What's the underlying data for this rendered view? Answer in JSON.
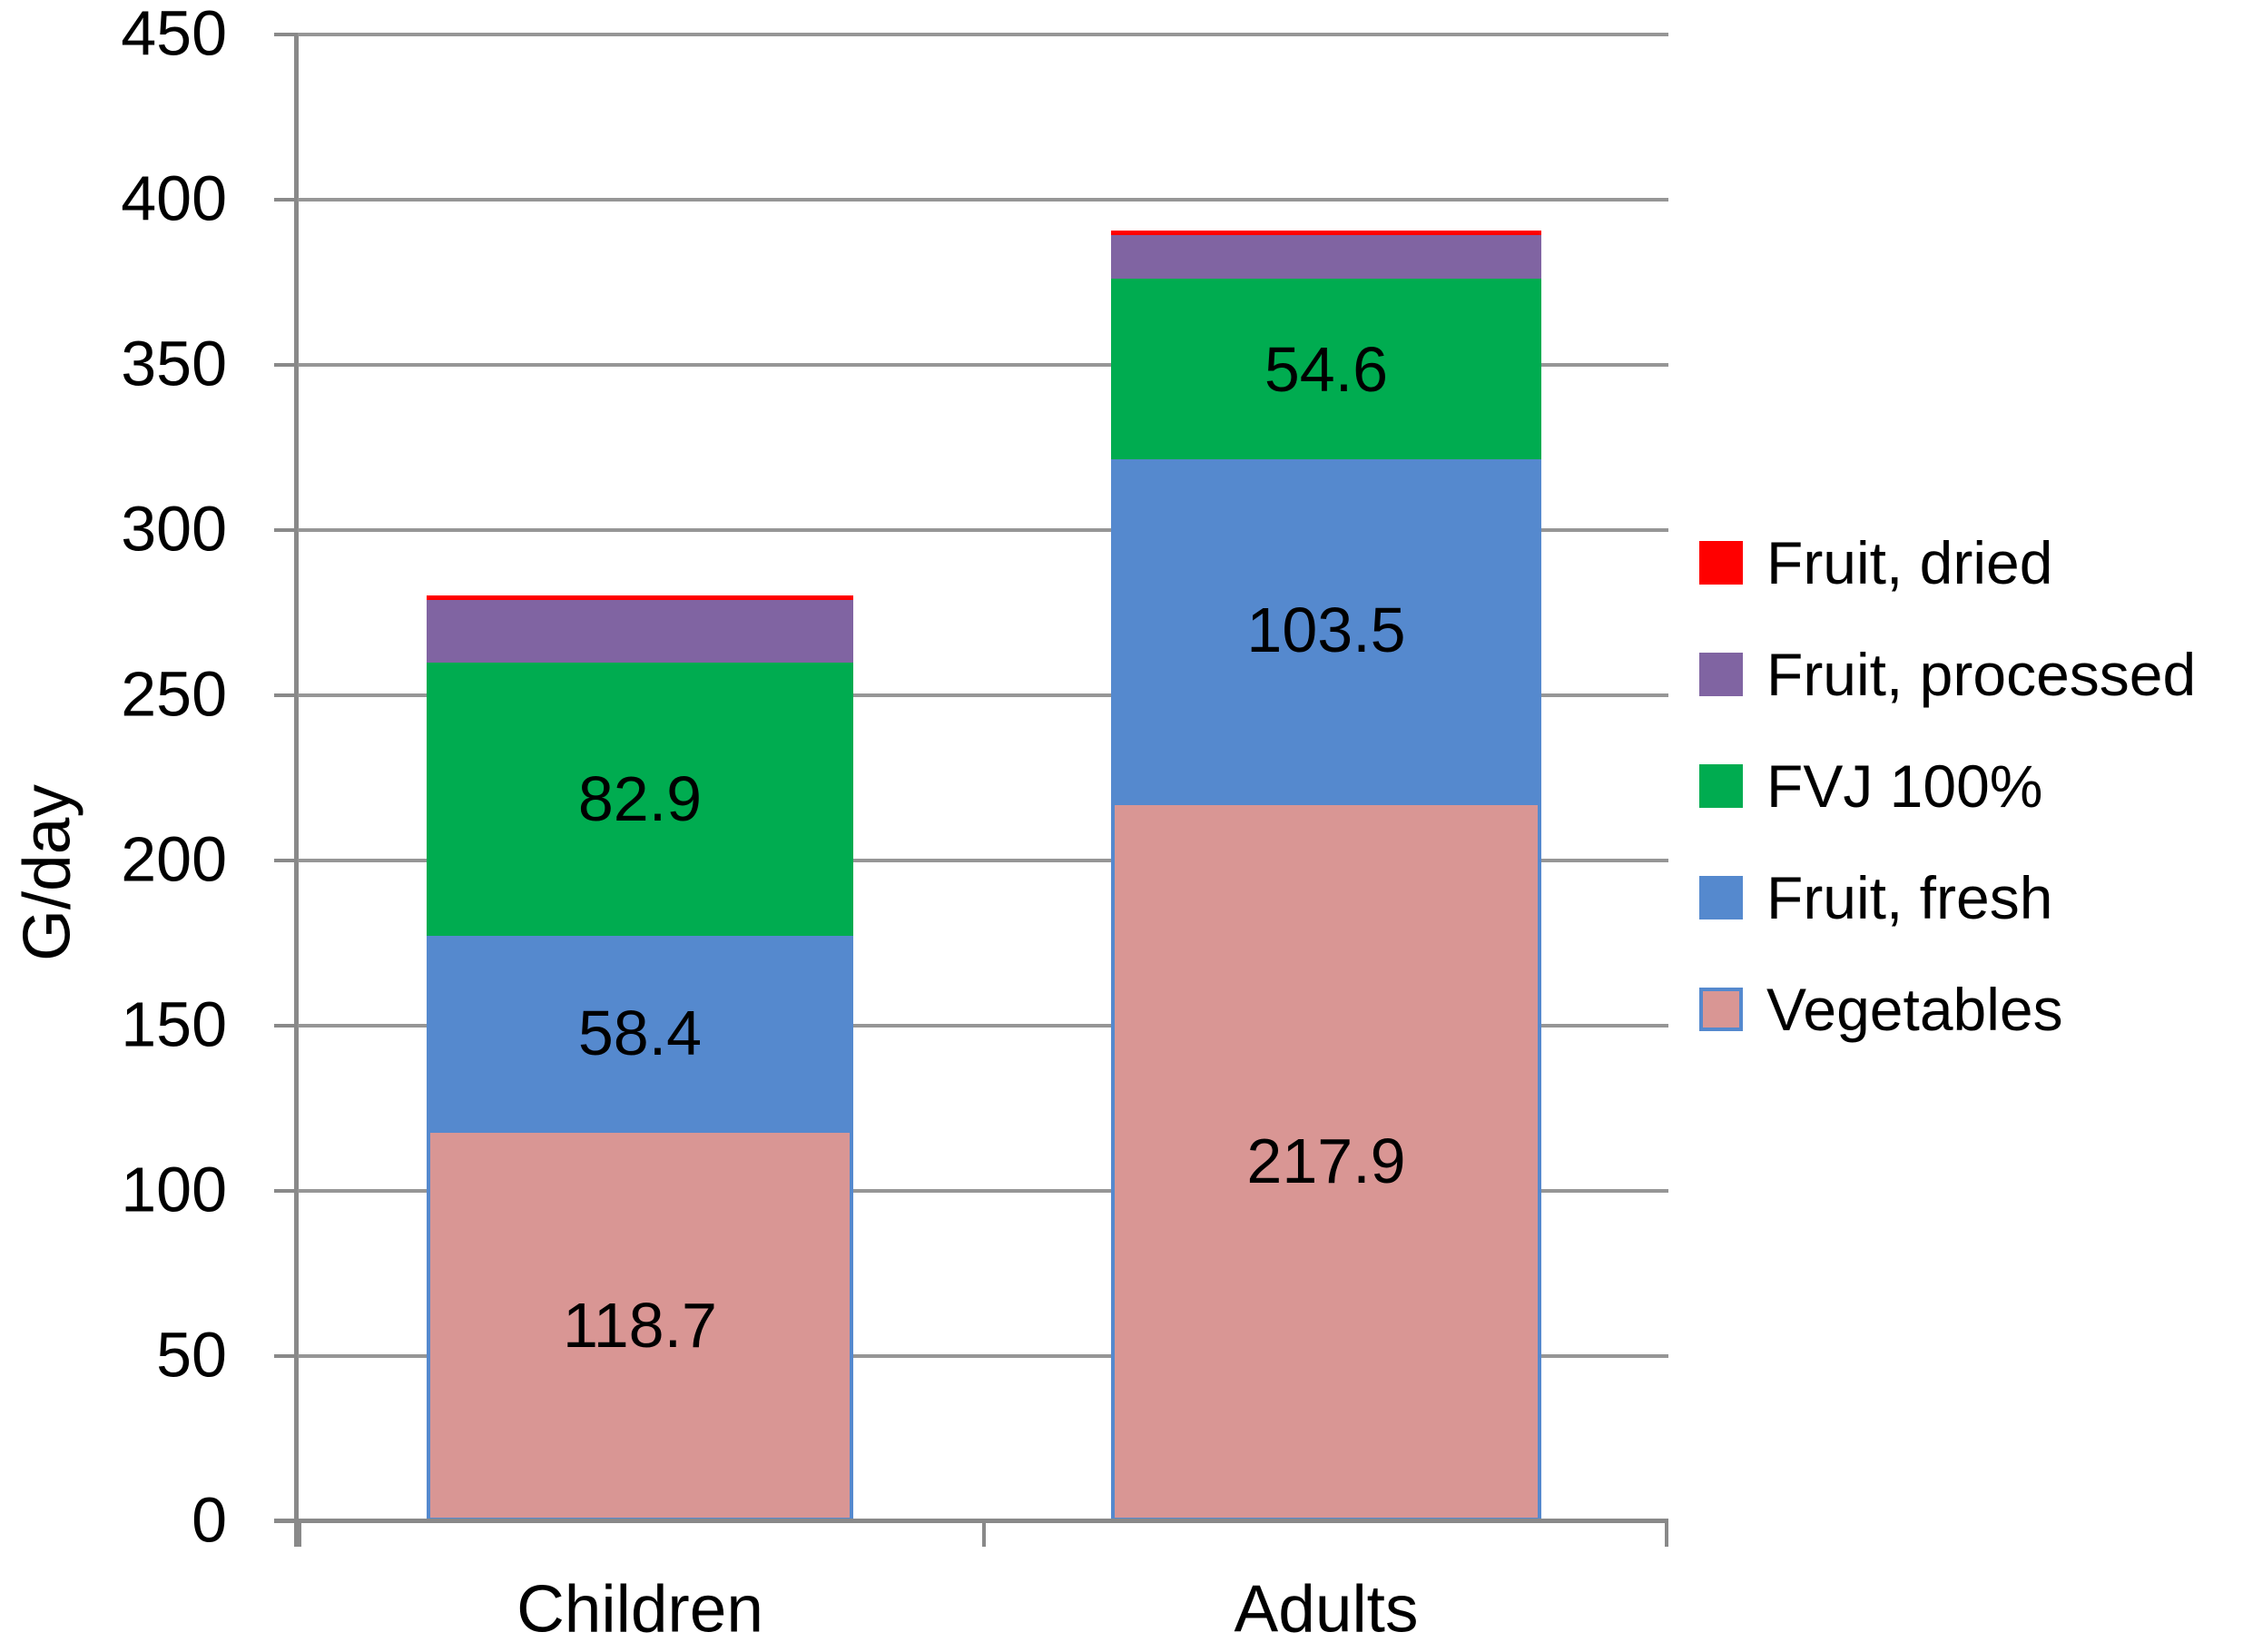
{
  "chart_data": {
    "type": "bar",
    "stacked": true,
    "title": "",
    "ylabel": "G/day",
    "xlabel": "",
    "ylim": [
      0,
      450
    ],
    "ytick_step": 50,
    "yticks": [
      0,
      50,
      100,
      150,
      200,
      250,
      300,
      350,
      400,
      450
    ],
    "grid": true,
    "legend_position": "right",
    "categories": [
      "Children",
      "Adults"
    ],
    "series": [
      {
        "name": "Vegetables",
        "color": "#D99694",
        "border_color": "#5589CE",
        "values": [
          118.7,
          217.9
        ],
        "labels_shown": true
      },
      {
        "name": "Fruit, fresh",
        "color": "#5589CE",
        "border_color": null,
        "values": [
          58.4,
          103.5
        ],
        "labels_shown": true
      },
      {
        "name": "FVJ 100%",
        "color": "#00AC50",
        "border_color": null,
        "values": [
          82.9,
          54.6
        ],
        "labels_shown": true
      },
      {
        "name": "Fruit, processed",
        "color": "#8064A2",
        "border_color": null,
        "values": [
          18.8,
          13.3
        ],
        "labels_shown": false,
        "estimated": true
      },
      {
        "name": "Fruit, dried",
        "color": "#FF0000",
        "border_color": null,
        "values": [
          1.4,
          1.4
        ],
        "labels_shown": false,
        "estimated": true
      }
    ],
    "legend_order": [
      "Fruit, dried",
      "Fruit, processed",
      "FVJ 100%",
      "Fruit, fresh",
      "Vegetables"
    ],
    "visible_data_labels": [
      "118.7",
      "58.4",
      "82.9",
      "217.9",
      "103.5",
      "54.6"
    ]
  },
  "style_colors": {
    "gridline": "#969696",
    "axis": "#898989",
    "text": "#000000",
    "background": "#FFFFFF"
  }
}
